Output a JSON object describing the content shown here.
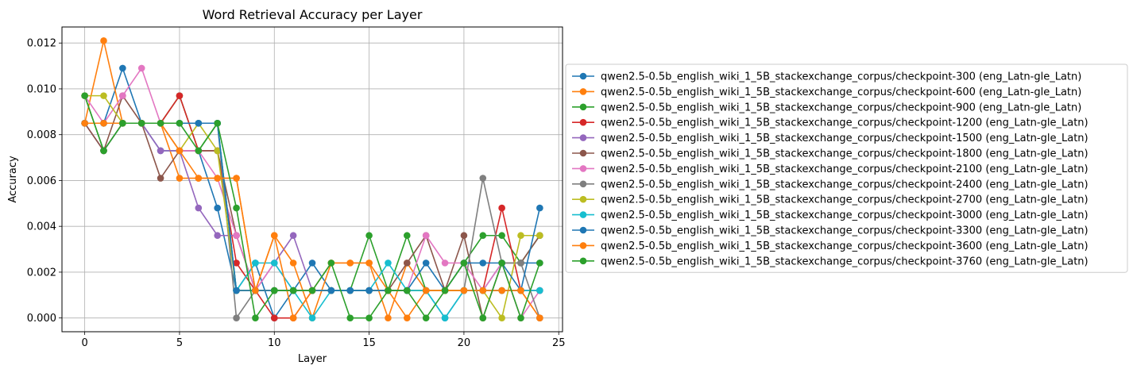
{
  "chart_data": {
    "type": "line",
    "title": "Word Retrieval Accuracy per Layer",
    "xlabel": "Layer",
    "ylabel": "Accuracy",
    "xlim": [
      -1.2,
      25.2
    ],
    "ylim": [
      -0.0006,
      0.0127
    ],
    "xticks": [
      0,
      5,
      10,
      15,
      20,
      25
    ],
    "yticks": [
      0.0,
      0.002,
      0.004,
      0.006,
      0.008,
      0.01,
      0.012
    ],
    "xtick_labels": [
      "0",
      "5",
      "10",
      "15",
      "20",
      "25"
    ],
    "ytick_labels": [
      "0.000",
      "0.002",
      "0.004",
      "0.006",
      "0.008",
      "0.010",
      "0.012"
    ],
    "grid": true,
    "legend_position": "outside-right",
    "x": [
      0,
      1,
      2,
      3,
      4,
      5,
      6,
      7,
      8,
      9,
      10,
      11,
      12,
      13,
      14,
      15,
      16,
      17,
      18,
      19,
      20,
      21,
      22,
      23,
      24
    ],
    "series": [
      {
        "name": "qwen2.5-0.5b_english_wiki_1_5B_stackexchange_corpus/checkpoint-300 (eng_Latn-gle_Latn)",
        "color": "#1f77b4",
        "values": [
          0.0085,
          0.0085,
          0.0109,
          0.0085,
          0.0073,
          0.0073,
          0.0073,
          0.0048,
          0.0012,
          0.0024,
          0.0,
          0.0012,
          0.0024,
          0.0012,
          0.0012,
          0.0012,
          0.0012,
          0.0012,
          0.0012,
          0.0,
          0.0012,
          0.0012,
          0.0024,
          0.0024,
          0.0024
        ]
      },
      {
        "name": "qwen2.5-0.5b_english_wiki_1_5B_stackexchange_corpus/checkpoint-600 (eng_Latn-gle_Latn)",
        "color": "#ff7f0e",
        "values": [
          0.0085,
          0.0121,
          0.0085,
          0.0085,
          0.0085,
          0.0061,
          0.0061,
          0.0061,
          0.0061,
          0.0012,
          0.0036,
          0.0024,
          0.0,
          0.0024,
          0.0024,
          0.0024,
          0.0,
          0.0024,
          0.0012,
          0.0012,
          0.0012,
          0.0012,
          0.0012,
          0.0012,
          0.0
        ]
      },
      {
        "name": "qwen2.5-0.5b_english_wiki_1_5B_stackexchange_corpus/checkpoint-900 (eng_Latn-gle_Latn)",
        "color": "#2ca02c",
        "values": [
          0.0097,
          0.0073,
          0.0085,
          0.0085,
          0.0085,
          0.0097,
          0.0073,
          0.0085,
          0.0012,
          0.0012,
          0.0012,
          0.0012,
          0.0012,
          0.0012,
          0.0012,
          0.0036,
          0.0012,
          0.0036,
          0.0012,
          0.0012,
          0.0024,
          0.0036,
          0.0036,
          0.0024,
          0.0036
        ]
      },
      {
        "name": "qwen2.5-0.5b_english_wiki_1_5B_stackexchange_corpus/checkpoint-1200 (eng_Latn-gle_Latn)",
        "color": "#d62728",
        "values": [
          0.0085,
          0.0085,
          0.0085,
          0.0085,
          0.0085,
          0.0097,
          0.0073,
          0.0073,
          0.0024,
          0.0012,
          0.0,
          0.0,
          0.0012,
          0.0012,
          0.0012,
          0.0012,
          0.0012,
          0.0012,
          0.0012,
          0.0012,
          0.0012,
          0.0012,
          0.0048,
          0.0012,
          0.0012
        ]
      },
      {
        "name": "qwen2.5-0.5b_english_wiki_1_5B_stackexchange_corpus/checkpoint-1500 (eng_Latn-gle_Latn)",
        "color": "#9467bd",
        "values": [
          0.0085,
          0.0073,
          0.0085,
          0.0085,
          0.0073,
          0.0073,
          0.0048,
          0.0036,
          0.0036,
          0.0012,
          0.0024,
          0.0036,
          0.0012,
          0.0012,
          0.0012,
          0.0012,
          0.0012,
          0.0012,
          0.0012,
          0.0012,
          0.0012,
          0.0012,
          0.0012,
          0.0012,
          0.0012
        ]
      },
      {
        "name": "qwen2.5-0.5b_english_wiki_1_5B_stackexchange_corpus/checkpoint-1800 (eng_Latn-gle_Latn)",
        "color": "#8c564b",
        "values": [
          0.0085,
          0.0073,
          0.0097,
          0.0085,
          0.0061,
          0.0073,
          0.0073,
          0.0073,
          0.0036,
          0.0012,
          0.0012,
          0.0012,
          0.0012,
          0.0012,
          0.0012,
          0.0012,
          0.0012,
          0.0024,
          0.0036,
          0.0012,
          0.0036,
          0.0,
          0.0024,
          0.0024,
          0.0036
        ]
      },
      {
        "name": "qwen2.5-0.5b_english_wiki_1_5B_stackexchange_corpus/checkpoint-2100 (eng_Latn-gle_Latn)",
        "color": "#e377c2",
        "values": [
          0.0097,
          0.0085,
          0.0097,
          0.0109,
          0.0085,
          0.0073,
          0.0073,
          0.0061,
          0.0036,
          0.0012,
          0.0024,
          0.0012,
          0.0012,
          0.0012,
          0.0012,
          0.0012,
          0.0012,
          0.0012,
          0.0036,
          0.0024,
          0.0024,
          0.0012,
          0.0024,
          0.0,
          0.0012
        ]
      },
      {
        "name": "qwen2.5-0.5b_english_wiki_1_5B_stackexchange_corpus/checkpoint-2400 (eng_Latn-gle_Latn)",
        "color": "#7f7f7f",
        "values": [
          0.0085,
          0.0085,
          0.0085,
          0.0085,
          0.0085,
          0.0085,
          0.0085,
          0.0085,
          0.0,
          0.0012,
          0.0012,
          0.0012,
          0.0012,
          0.0012,
          0.0012,
          0.0012,
          0.0012,
          0.0012,
          0.0012,
          0.0012,
          0.0012,
          0.0061,
          0.0024,
          0.0024,
          0.0
        ]
      },
      {
        "name": "qwen2.5-0.5b_english_wiki_1_5B_stackexchange_corpus/checkpoint-2700 (eng_Latn-gle_Latn)",
        "color": "#bcbd22",
        "values": [
          0.0097,
          0.0097,
          0.0085,
          0.0085,
          0.0085,
          0.0073,
          0.0085,
          0.0073,
          0.0012,
          0.0012,
          0.0012,
          0.0012,
          0.0012,
          0.0012,
          0.0012,
          0.0012,
          0.0012,
          0.0012,
          0.0012,
          0.0012,
          0.0012,
          0.0012,
          0.0,
          0.0036,
          0.0036
        ]
      },
      {
        "name": "qwen2.5-0.5b_english_wiki_1_5B_stackexchange_corpus/checkpoint-3000 (eng_Latn-gle_Latn)",
        "color": "#17becf",
        "values": [
          0.0085,
          0.0085,
          0.0085,
          0.0085,
          0.0085,
          0.0085,
          0.0085,
          0.0085,
          0.0012,
          0.0024,
          0.0024,
          0.0012,
          0.0,
          0.0012,
          0.0012,
          0.0012,
          0.0024,
          0.0012,
          0.0012,
          0.0,
          0.0012,
          0.0012,
          0.0012,
          0.0012,
          0.0012
        ]
      },
      {
        "name": "qwen2.5-0.5b_english_wiki_1_5B_stackexchange_corpus/checkpoint-3300 (eng_Latn-gle_Latn)",
        "color": "#1f77b4",
        "values": [
          0.0085,
          0.0085,
          0.0085,
          0.0085,
          0.0085,
          0.0085,
          0.0085,
          0.0085,
          0.0012,
          0.0012,
          0.0012,
          0.0012,
          0.0012,
          0.0012,
          0.0012,
          0.0012,
          0.0012,
          0.0012,
          0.0024,
          0.0012,
          0.0024,
          0.0024,
          0.0024,
          0.0012,
          0.0048
        ]
      },
      {
        "name": "qwen2.5-0.5b_english_wiki_1_5B_stackexchange_corpus/checkpoint-3600 (eng_Latn-gle_Latn)",
        "color": "#ff7f0e",
        "values": [
          0.0085,
          0.0085,
          0.0085,
          0.0085,
          0.0085,
          0.0073,
          0.0061,
          0.0061,
          0.0061,
          0.0012,
          0.0036,
          0.0,
          0.0012,
          0.0024,
          0.0024,
          0.0024,
          0.0012,
          0.0,
          0.0012,
          0.0012,
          0.0012,
          0.0012,
          0.0012,
          0.0012,
          0.0
        ]
      },
      {
        "name": "qwen2.5-0.5b_english_wiki_1_5B_stackexchange_corpus/checkpoint-3760 (eng_Latn-gle_Latn)",
        "color": "#2ca02c",
        "values": [
          0.0097,
          0.0073,
          0.0085,
          0.0085,
          0.0085,
          0.0085,
          0.0073,
          0.0085,
          0.0048,
          0.0,
          0.0012,
          0.0012,
          0.0012,
          0.0024,
          0.0,
          0.0,
          0.0012,
          0.0012,
          0.0,
          0.0012,
          0.0024,
          0.0,
          0.0024,
          0.0,
          0.0024
        ]
      }
    ]
  }
}
